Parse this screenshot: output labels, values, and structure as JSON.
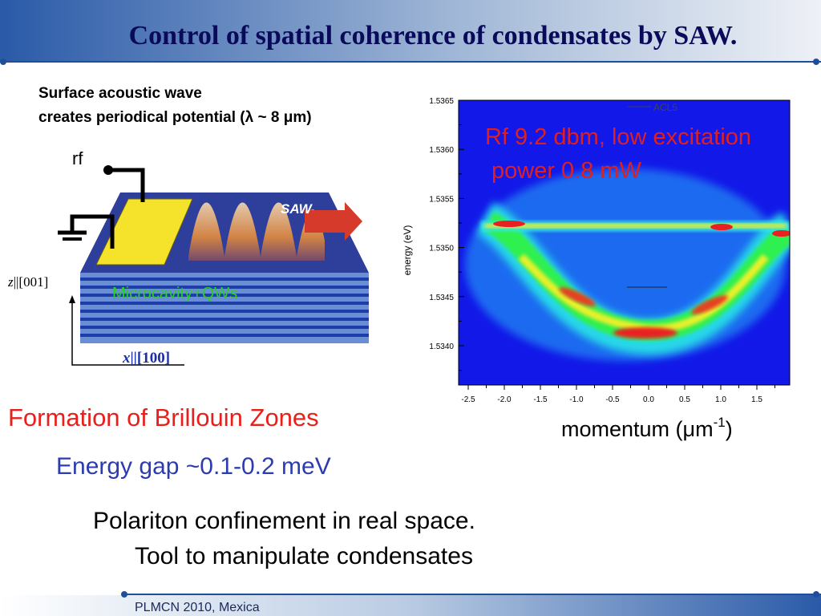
{
  "title": "Control of spatial coherence of condensates by SAW.",
  "figure": {
    "caption_lines": [
      "Surface acoustic wave",
      "creates periodical potential (λ ~ 8 μm)"
    ],
    "rf": "rf",
    "saw": "SAW",
    "layers": "Microcavity+QWs",
    "z_axis": [
      "z",
      "||[001]"
    ],
    "x_axis": [
      "x",
      "||[100]"
    ]
  },
  "plot": {
    "legend": "ACL5",
    "annotation_lines": [
      "Rf 9.2 dbm, low excitation",
      "power 0.8 mW"
    ],
    "y_label": "energy (eV)",
    "y_ticks": [
      "1.5365",
      "1.5360",
      "1.5355",
      "1.5350",
      "1.5345",
      "1.5340"
    ],
    "x_ticks": [
      "-2.5",
      "-2.0",
      "-1.5",
      "-1.0",
      "-0.5",
      "0.0",
      "0.5",
      "1.0",
      "1.5"
    ],
    "x_label": [
      "momentum (μm",
      "-1",
      ")"
    ]
  },
  "bullets": [
    "Formation of  Brillouin Zones",
    "Energy gap ~0.1-0.2 meV",
    "Polariton confinement in real space.",
    "Tool to manipulate condensates"
  ],
  "footer": "PLMCN 2010, Mexica"
}
